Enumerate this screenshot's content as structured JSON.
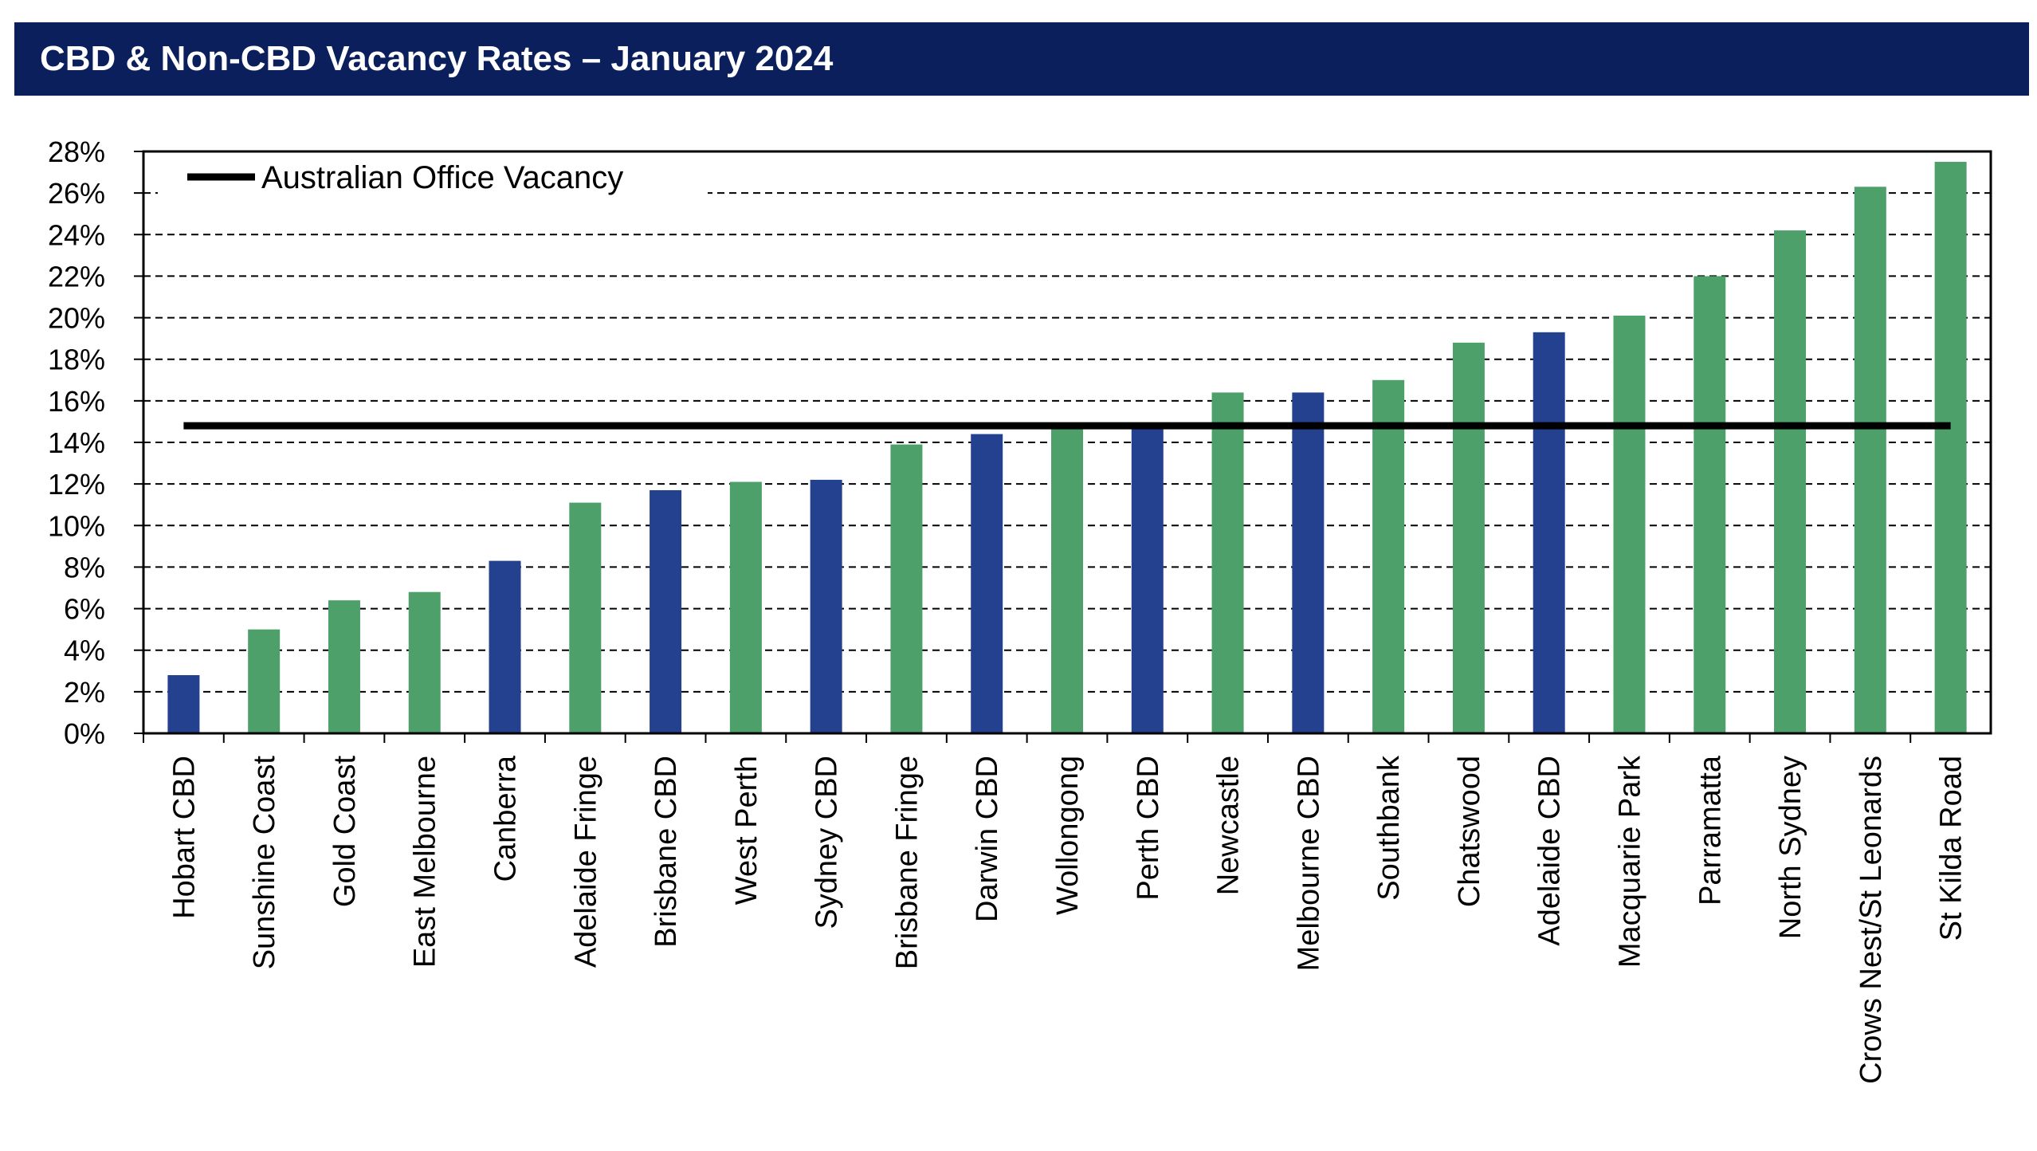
{
  "header": {
    "title": "CBD & Non-CBD Vacancy Rates – January 2024"
  },
  "colors": {
    "cbd": "#24418f",
    "non_cbd": "#4ea06a",
    "reference_line": "#000000",
    "header_bg": "#0a1f5c"
  },
  "chart_data": {
    "type": "bar",
    "title": "CBD & Non-CBD Vacancy Rates – January 2024",
    "xlabel": "",
    "ylabel": "",
    "ylim": [
      0,
      28
    ],
    "yticks": [
      "0%",
      "2%",
      "4%",
      "6%",
      "8%",
      "10%",
      "12%",
      "14%",
      "16%",
      "18%",
      "20%",
      "22%",
      "24%",
      "26%",
      "28%"
    ],
    "grid": "horizontal dashed",
    "categories": [
      "Hobart CBD",
      "Sunshine Coast",
      "Gold Coast",
      "East Melbourne",
      "Canberra",
      "Adelaide Fringe",
      "Brisbane CBD",
      "West Perth",
      "Sydney CBD",
      "Brisbane Fringe",
      "Darwin CBD",
      "Wollongong",
      "Perth CBD",
      "Newcastle",
      "Melbourne CBD",
      "Southbank",
      "Chatswood",
      "Adelaide CBD",
      "Macquarie Park",
      "Parramatta",
      "North Sydney",
      "Crows Nest/St Leonards",
      "St Kilda Road"
    ],
    "values": [
      2.8,
      5.0,
      6.4,
      6.8,
      8.3,
      11.1,
      11.7,
      12.1,
      12.2,
      13.9,
      14.4,
      14.7,
      14.7,
      16.4,
      16.4,
      17.0,
      18.8,
      19.3,
      20.1,
      22.0,
      24.2,
      26.3,
      27.5
    ],
    "bar_group": [
      "cbd",
      "non_cbd",
      "non_cbd",
      "non_cbd",
      "cbd",
      "non_cbd",
      "cbd",
      "non_cbd",
      "cbd",
      "non_cbd",
      "cbd",
      "non_cbd",
      "cbd",
      "non_cbd",
      "cbd",
      "non_cbd",
      "non_cbd",
      "cbd",
      "non_cbd",
      "non_cbd",
      "non_cbd",
      "non_cbd",
      "non_cbd"
    ],
    "reference_line": {
      "name": "Australian Office Vacancy",
      "value": 14.8
    },
    "legend": {
      "position": "top-left",
      "entries": [
        "Australian Office Vacancy"
      ]
    }
  }
}
